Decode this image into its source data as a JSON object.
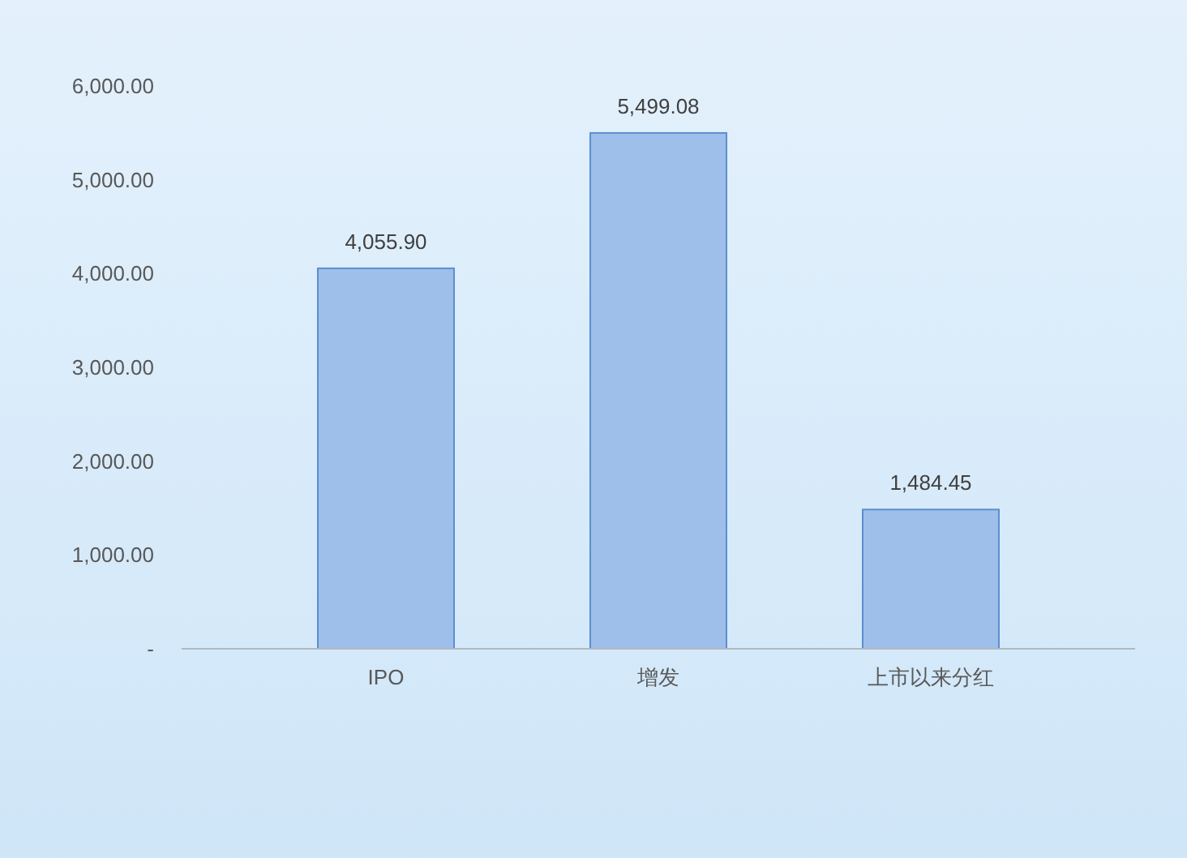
{
  "chart_data": {
    "type": "bar",
    "categories": [
      "IPO",
      "增发",
      "上市以来分红"
    ],
    "values": [
      4055.9,
      5499.08,
      1484.45
    ],
    "value_labels": [
      "4,055.90",
      "5,499.08",
      "1,484.45"
    ],
    "color": "#9dbfe9",
    "ylim": [
      0,
      6000
    ],
    "yticks": [
      {
        "value": 0,
        "label": "-"
      },
      {
        "value": 1000,
        "label": "1,000.00"
      },
      {
        "value": 2000,
        "label": "2,000.00"
      },
      {
        "value": 3000,
        "label": "3,000.00"
      },
      {
        "value": 4000,
        "label": "4,000.00"
      },
      {
        "value": 5000,
        "label": "5,000.00"
      },
      {
        "value": 6000,
        "label": "6,000.00"
      }
    ],
    "grid": false
  }
}
